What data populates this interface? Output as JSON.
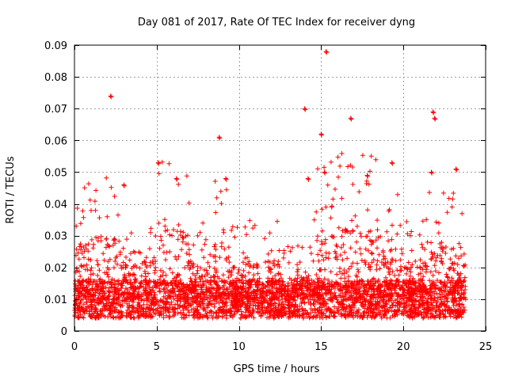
{
  "chart_data": {
    "type": "scatter",
    "title": "Day 081 of 2017, Rate Of TEC Index for receiver dyng",
    "xlabel": "GPS time / hours",
    "ylabel": "ROTI / TECUs",
    "xlim": [
      0,
      25
    ],
    "ylim": [
      0,
      0.09
    ],
    "x_ticks": [
      0,
      5,
      10,
      15,
      20,
      25
    ],
    "x_tick_labels": [
      "0",
      "5",
      "10",
      "15",
      "20",
      "25"
    ],
    "y_ticks": [
      0,
      0.01,
      0.02,
      0.03,
      0.04,
      0.05,
      0.06,
      0.07,
      0.08,
      0.09
    ],
    "y_tick_labels": [
      "0",
      "0.01",
      "0.02",
      "0.03",
      "0.04",
      "0.05",
      "0.06",
      "0.07",
      "0.08",
      "0.09"
    ],
    "grid": true,
    "marker": "+",
    "color": "#ff0000",
    "series": [
      {
        "name": "ROTI",
        "x_range": [
          0,
          23.8
        ],
        "baseline_typical": 0.01,
        "outliers": [
          {
            "x": 2.2,
            "y": 0.074
          },
          {
            "x": 15.3,
            "y": 0.088
          },
          {
            "x": 14.0,
            "y": 0.07
          },
          {
            "x": 16.8,
            "y": 0.067
          },
          {
            "x": 21.8,
            "y": 0.069
          },
          {
            "x": 21.9,
            "y": 0.067
          },
          {
            "x": 8.8,
            "y": 0.061
          },
          {
            "x": 15.0,
            "y": 0.062
          },
          {
            "x": 5.1,
            "y": 0.053
          },
          {
            "x": 19.3,
            "y": 0.053
          },
          {
            "x": 23.2,
            "y": 0.051
          },
          {
            "x": 21.7,
            "y": 0.05
          },
          {
            "x": 15.2,
            "y": 0.05
          },
          {
            "x": 9.2,
            "y": 0.048
          },
          {
            "x": 17.8,
            "y": 0.049
          },
          {
            "x": 3.0,
            "y": 0.046
          },
          {
            "x": 6.2,
            "y": 0.048
          },
          {
            "x": 14.2,
            "y": 0.048
          }
        ]
      }
    ]
  }
}
